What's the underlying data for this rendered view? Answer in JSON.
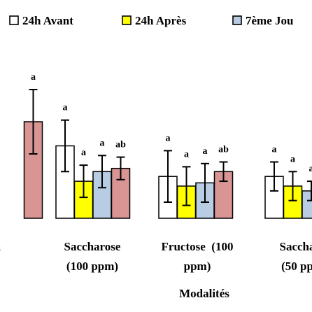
{
  "chart_data": {
    "type": "bar",
    "xlabel": "Modalités",
    "ylabel": "",
    "legend": {
      "placement": "top"
    },
    "series": [
      {
        "name": "24h Avant",
        "color": "#ffffff",
        "values": [
          null,
          0.45,
          0.26,
          0.26
        ],
        "errors": [
          null,
          0.16,
          0.16,
          0.09
        ],
        "letters": [
          null,
          "a",
          "a",
          "a"
        ]
      },
      {
        "name": "24h Après",
        "color": "#ffff00",
        "values": [
          null,
          0.23,
          0.2,
          0.2
        ],
        "errors": [
          null,
          0.1,
          0.12,
          0.09
        ],
        "letters": [
          null,
          "a",
          "a",
          "a"
        ]
      },
      {
        "name": "7ème Jou",
        "color": "#b8cce4",
        "values": [
          null,
          0.29,
          0.22,
          0.17
        ],
        "errors": [
          null,
          0.1,
          0.12,
          0.06
        ],
        "letters": [
          null,
          "a",
          "a",
          "a"
        ]
      },
      {
        "name": "",
        "color": "#d99594",
        "values": [
          0.6,
          0.31,
          0.29,
          null
        ],
        "errors": [
          0.2,
          0.07,
          0.06,
          null
        ],
        "letters": [
          "a",
          "ab",
          "ab",
          null
        ]
      }
    ],
    "categories": [
      {
        "line1": "in",
        "line2": ""
      },
      {
        "line1": "Saccharose",
        "line2": "(100 ppm)"
      },
      {
        "line1": "Fructose  (100",
        "line2": "ppm)"
      },
      {
        "line1": "Saccha",
        "line2": "(50 pp"
      }
    ],
    "ylim": [
      0,
      1
    ]
  }
}
